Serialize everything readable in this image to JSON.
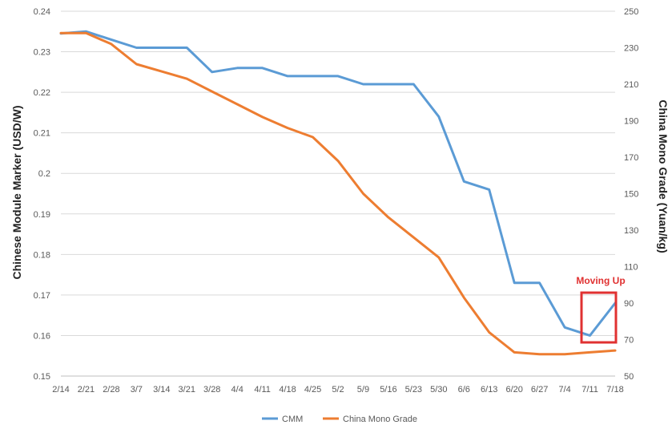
{
  "chart_data": {
    "type": "line",
    "title": "",
    "categories": [
      "2/14",
      "2/21",
      "2/28",
      "3/7",
      "3/14",
      "3/21",
      "3/28",
      "4/4",
      "4/11",
      "4/18",
      "4/25",
      "5/2",
      "5/9",
      "5/16",
      "5/23",
      "5/30",
      "6/6",
      "6/13",
      "6/20",
      "6/27",
      "7/4",
      "7/11",
      "7/18"
    ],
    "y_left": {
      "label": "Chinese Module Marker (USD/W)",
      "ticks": [
        "0.24",
        "0.23",
        "0.22",
        "0.21",
        "0.2",
        "0.19",
        "0.18",
        "0.17",
        "0.16",
        "0.15"
      ],
      "ylim": [
        0.15,
        0.24
      ]
    },
    "y_right": {
      "label": "China Mono Grade (Yuan/kg)",
      "ticks": [
        "250",
        "230",
        "210",
        "190",
        "170",
        "150",
        "130",
        "110",
        "90",
        "70",
        "50"
      ],
      "ylim": [
        50,
        250
      ]
    },
    "series": [
      {
        "name": "CMM",
        "axis": "left",
        "color": "#5b9bd5",
        "values": [
          0.2345,
          0.235,
          0.233,
          0.231,
          0.231,
          0.231,
          0.225,
          0.226,
          0.226,
          0.224,
          0.224,
          0.224,
          0.222,
          0.222,
          0.222,
          0.214,
          0.198,
          0.196,
          0.173,
          0.173,
          0.162,
          0.16,
          0.168
        ]
      },
      {
        "name": "China Mono Grade",
        "axis": "right",
        "color": "#ed7d31",
        "values": [
          238,
          238,
          232,
          221,
          217,
          213,
          206,
          199,
          192,
          186,
          181,
          168,
          150,
          137,
          126,
          115,
          93,
          74,
          63,
          62,
          62,
          63,
          64
        ]
      }
    ],
    "legend": {
      "position": "bottom",
      "entries": [
        "CMM",
        "China Mono Grade"
      ]
    },
    "grid": true,
    "annotation": {
      "text": "Moving Up",
      "color": "#e03131"
    }
  }
}
